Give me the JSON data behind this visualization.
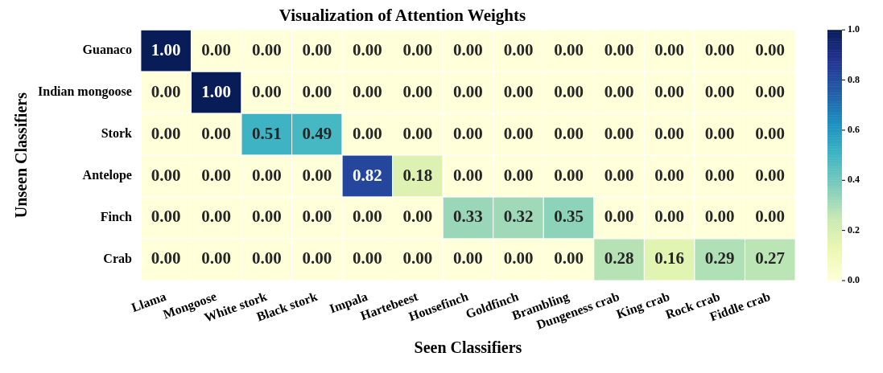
{
  "chart_data": {
    "type": "heatmap",
    "title": "Visualization of Attention Weights",
    "xlabel": "Seen Classifiers",
    "ylabel": "Unseen Classifiers",
    "categories": [
      "Llama",
      "Mongoose",
      "White stork",
      "Black stork",
      "Impala",
      "Hartebeest",
      "Housefinch",
      "Goldfinch",
      "Brambling",
      "Dungeness crab",
      "King crab",
      "Rock crab",
      "Fiddle crab"
    ],
    "y_categories": [
      "Guanaco",
      "Indian mongoose",
      "Stork",
      "Antelope",
      "Finch",
      "Crab"
    ],
    "cells": [
      [
        1,
        0,
        0,
        0,
        0,
        0,
        0,
        0,
        0,
        0,
        0,
        0,
        0
      ],
      [
        0,
        1,
        0,
        0,
        0,
        0,
        0,
        0,
        0,
        0,
        0,
        0,
        0
      ],
      [
        0,
        0,
        0.51,
        0.49,
        0,
        0,
        0,
        0,
        0,
        0,
        0,
        0,
        0
      ],
      [
        0,
        0,
        0,
        0,
        0.82,
        0.18,
        0,
        0,
        0,
        0,
        0,
        0,
        0
      ],
      [
        0,
        0,
        0,
        0,
        0,
        0,
        0.33,
        0.32,
        0.35,
        0,
        0,
        0,
        0
      ],
      [
        0,
        0,
        0,
        0,
        0,
        0,
        0,
        0,
        0,
        0.28,
        0.16,
        0.29,
        0.27
      ]
    ],
    "cell_labels": [
      [
        "1.00",
        "0.00",
        "0.00",
        "0.00",
        "0.00",
        "0.00",
        "0.00",
        "0.00",
        "0.00",
        "0.00",
        "0.00",
        "0.00",
        "0.00"
      ],
      [
        "0.00",
        "1.00",
        "0.00",
        "0.00",
        "0.00",
        "0.00",
        "0.00",
        "0.00",
        "0.00",
        "0.00",
        "0.00",
        "0.00",
        "0.00"
      ],
      [
        "0.00",
        "0.00",
        "0.51",
        "0.49",
        "0.00",
        "0.00",
        "0.00",
        "0.00",
        "0.00",
        "0.00",
        "0.00",
        "0.00",
        "0.00"
      ],
      [
        "0.00",
        "0.00",
        "0.00",
        "0.00",
        "0.82",
        "0.18",
        "0.00",
        "0.00",
        "0.00",
        "0.00",
        "0.00",
        "0.00",
        "0.00"
      ],
      [
        "0.00",
        "0.00",
        "0.00",
        "0.00",
        "0.00",
        "0.00",
        "0.33",
        "0.32",
        "0.35",
        "0.00",
        "0.00",
        "0.00",
        "0.00"
      ],
      [
        "0.00",
        "0.00",
        "0.00",
        "0.00",
        "0.00",
        "0.00",
        "0.00",
        "0.00",
        "0.00",
        "0.28",
        "0.16",
        "0.29",
        "0.27"
      ]
    ],
    "clim": [
      0,
      1
    ],
    "cticks": [
      {
        "value": 0,
        "label": "0.0"
      },
      {
        "value": 0.2,
        "label": "0.2"
      },
      {
        "value": 0.4,
        "label": "0.4"
      },
      {
        "value": 0.6,
        "label": "0.6"
      },
      {
        "value": 0.8,
        "label": "0.8"
      },
      {
        "value": 1,
        "label": "1.0"
      }
    ]
  }
}
